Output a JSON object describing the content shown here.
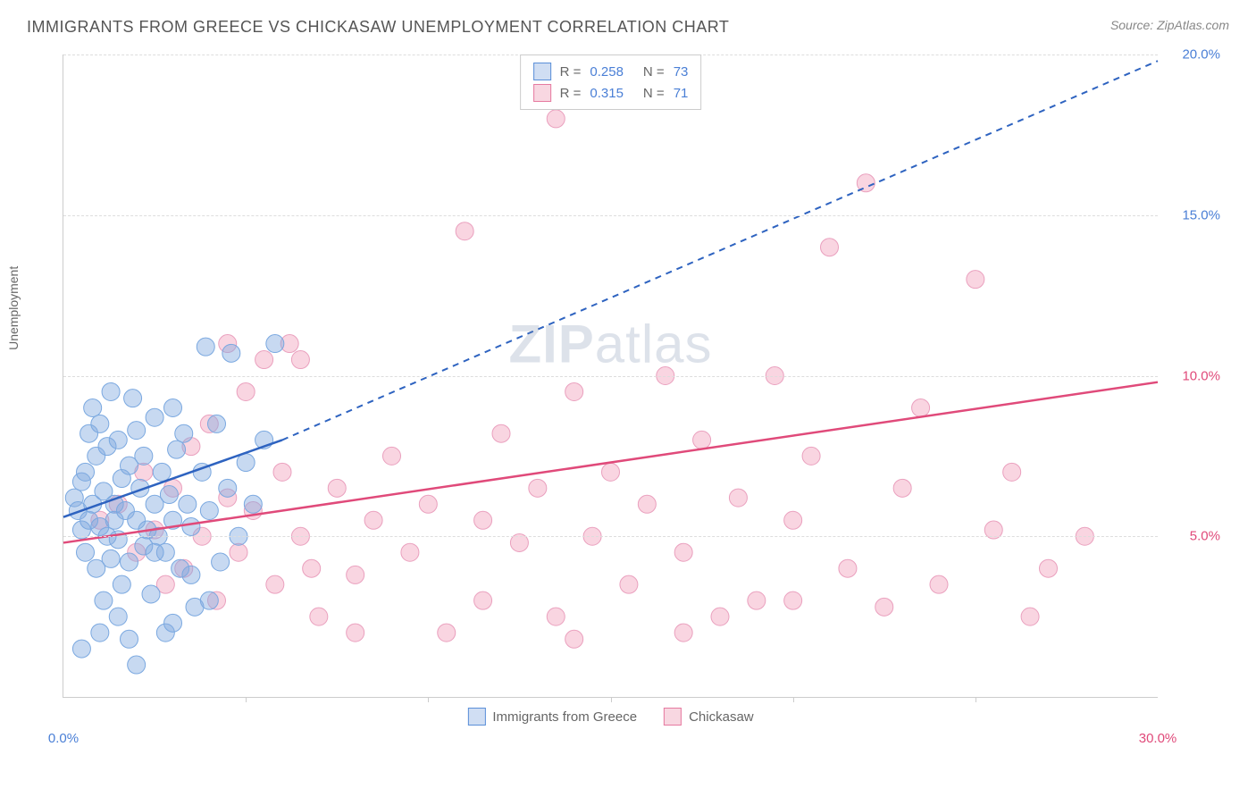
{
  "header": {
    "title": "IMMIGRANTS FROM GREECE VS CHICKASAW UNEMPLOYMENT CORRELATION CHART",
    "source": "Source: ZipAtlas.com"
  },
  "chart": {
    "type": "scatter",
    "ylabel": "Unemployment",
    "xlim": [
      0,
      30
    ],
    "ylim": [
      0,
      20
    ],
    "background_color": "#ffffff",
    "grid_color": "#dddddd",
    "axis_color": "#cccccc",
    "yticks": [
      {
        "value": 5,
        "label": "5.0%",
        "color": "#e04a7a"
      },
      {
        "value": 10,
        "label": "10.0%",
        "color": "#e04a7a"
      },
      {
        "value": 15,
        "label": "15.0%",
        "color": "#4a7fd6"
      },
      {
        "value": 20,
        "label": "20.0%",
        "color": "#4a7fd6"
      }
    ],
    "xticks": [
      {
        "value": 0,
        "label": "0.0%",
        "color": "#4a7fd6"
      },
      {
        "value": 30,
        "label": "30.0%",
        "color": "#e04a7a"
      }
    ],
    "xtick_marks": [
      5,
      10,
      15,
      20,
      25
    ],
    "legend_top": [
      {
        "swatch_fill": "rgba(120,160,220,0.35)",
        "swatch_border": "#5a8fd8",
        "r_label": "R =",
        "r_value": "0.258",
        "n_label": "N =",
        "n_value": "73",
        "value_color": "#4a7fd6",
        "label_color": "#666666"
      },
      {
        "swatch_fill": "rgba(235,140,170,0.35)",
        "swatch_border": "#e67aa0",
        "r_label": "R =",
        "r_value": "0.315",
        "n_label": "N =",
        "n_value": "71",
        "value_color": "#4a7fd6",
        "label_color": "#666666"
      }
    ],
    "legend_bottom": [
      {
        "swatch_fill": "rgba(120,160,220,0.35)",
        "swatch_border": "#5a8fd8",
        "label": "Immigrants from Greece"
      },
      {
        "swatch_fill": "rgba(235,140,170,0.35)",
        "swatch_border": "#e67aa0",
        "label": "Chickasaw"
      }
    ],
    "watermark": {
      "part1": "ZIP",
      "part2": "atlas"
    },
    "series": [
      {
        "name": "Immigrants from Greece",
        "color_fill": "rgba(130,170,225,0.45)",
        "color_stroke": "#7aa8e0",
        "marker_radius": 10,
        "trend": {
          "solid_from": [
            0,
            5.6
          ],
          "solid_to": [
            6,
            8.0
          ],
          "dashed_to": [
            30,
            19.8
          ],
          "color": "#2e63c0",
          "width": 2.5
        },
        "points": [
          [
            0.3,
            6.2
          ],
          [
            0.4,
            5.8
          ],
          [
            0.5,
            5.2
          ],
          [
            0.5,
            6.7
          ],
          [
            0.6,
            4.5
          ],
          [
            0.6,
            7.0
          ],
          [
            0.7,
            8.2
          ],
          [
            0.7,
            5.5
          ],
          [
            0.8,
            6.0
          ],
          [
            0.8,
            9.0
          ],
          [
            0.9,
            4.0
          ],
          [
            0.9,
            7.5
          ],
          [
            1.0,
            5.3
          ],
          [
            1.0,
            8.5
          ],
          [
            1.1,
            6.4
          ],
          [
            1.1,
            3.0
          ],
          [
            1.2,
            5.0
          ],
          [
            1.2,
            7.8
          ],
          [
            1.3,
            9.5
          ],
          [
            1.3,
            4.3
          ],
          [
            1.4,
            6.0
          ],
          [
            1.4,
            5.5
          ],
          [
            1.5,
            8.0
          ],
          [
            1.5,
            4.9
          ],
          [
            1.6,
            6.8
          ],
          [
            1.6,
            3.5
          ],
          [
            1.7,
            5.8
          ],
          [
            1.8,
            7.2
          ],
          [
            1.8,
            4.2
          ],
          [
            1.9,
            9.3
          ],
          [
            2.0,
            5.5
          ],
          [
            2.0,
            8.3
          ],
          [
            2.1,
            6.5
          ],
          [
            2.2,
            4.7
          ],
          [
            2.2,
            7.5
          ],
          [
            2.3,
            5.2
          ],
          [
            2.4,
            3.2
          ],
          [
            2.5,
            6.0
          ],
          [
            2.5,
            8.7
          ],
          [
            2.6,
            5.0
          ],
          [
            2.7,
            7.0
          ],
          [
            2.8,
            4.5
          ],
          [
            2.9,
            6.3
          ],
          [
            3.0,
            9.0
          ],
          [
            3.0,
            5.5
          ],
          [
            3.1,
            7.7
          ],
          [
            3.2,
            4.0
          ],
          [
            3.3,
            8.2
          ],
          [
            3.4,
            6.0
          ],
          [
            3.5,
            5.3
          ],
          [
            3.6,
            2.8
          ],
          [
            3.8,
            7.0
          ],
          [
            3.9,
            10.9
          ],
          [
            4.0,
            5.8
          ],
          [
            4.2,
            8.5
          ],
          [
            4.3,
            4.2
          ],
          [
            4.5,
            6.5
          ],
          [
            4.6,
            10.7
          ],
          [
            4.8,
            5.0
          ],
          [
            5.0,
            7.3
          ],
          [
            5.2,
            6.0
          ],
          [
            5.5,
            8.0
          ],
          [
            5.8,
            11.0
          ],
          [
            2.0,
            1.0
          ],
          [
            1.5,
            2.5
          ],
          [
            2.8,
            2.0
          ],
          [
            3.5,
            3.8
          ],
          [
            4.0,
            3.0
          ],
          [
            1.0,
            2.0
          ],
          [
            0.5,
            1.5
          ],
          [
            1.8,
            1.8
          ],
          [
            2.5,
            4.5
          ],
          [
            3.0,
            2.3
          ]
        ]
      },
      {
        "name": "Chickasaw",
        "color_fill": "rgba(240,150,180,0.40)",
        "color_stroke": "#eaa0be",
        "marker_radius": 10,
        "trend": {
          "solid_from": [
            0,
            4.8
          ],
          "solid_to": [
            30,
            9.8
          ],
          "dashed_to": null,
          "color": "#e04a7a",
          "width": 2.5
        },
        "points": [
          [
            1.0,
            5.5
          ],
          [
            1.5,
            6.0
          ],
          [
            2.0,
            4.5
          ],
          [
            2.2,
            7.0
          ],
          [
            2.5,
            5.2
          ],
          [
            2.8,
            3.5
          ],
          [
            3.0,
            6.5
          ],
          [
            3.3,
            4.0
          ],
          [
            3.5,
            7.8
          ],
          [
            3.8,
            5.0
          ],
          [
            4.0,
            8.5
          ],
          [
            4.2,
            3.0
          ],
          [
            4.5,
            6.2
          ],
          [
            4.8,
            4.5
          ],
          [
            5.0,
            9.5
          ],
          [
            5.2,
            5.8
          ],
          [
            5.5,
            10.5
          ],
          [
            5.8,
            3.5
          ],
          [
            6.0,
            7.0
          ],
          [
            6.2,
            11.0
          ],
          [
            6.5,
            5.0
          ],
          [
            6.8,
            4.0
          ],
          [
            7.0,
            2.5
          ],
          [
            7.5,
            6.5
          ],
          [
            8.0,
            3.8
          ],
          [
            8.5,
            5.5
          ],
          [
            9.0,
            7.5
          ],
          [
            9.5,
            4.5
          ],
          [
            10.0,
            6.0
          ],
          [
            10.5,
            2.0
          ],
          [
            11.0,
            14.5
          ],
          [
            11.5,
            5.5
          ],
          [
            12.0,
            8.2
          ],
          [
            12.5,
            4.8
          ],
          [
            13.0,
            6.5
          ],
          [
            13.5,
            18.0
          ],
          [
            13.5,
            2.5
          ],
          [
            14.0,
            9.5
          ],
          [
            14.5,
            5.0
          ],
          [
            15.0,
            7.0
          ],
          [
            15.5,
            3.5
          ],
          [
            16.0,
            6.0
          ],
          [
            16.5,
            10.0
          ],
          [
            17.0,
            4.5
          ],
          [
            17.5,
            8.0
          ],
          [
            18.0,
            2.5
          ],
          [
            18.5,
            6.2
          ],
          [
            19.0,
            3.0
          ],
          [
            19.5,
            10.0
          ],
          [
            20.0,
            5.5
          ],
          [
            20.5,
            7.5
          ],
          [
            21.0,
            14.0
          ],
          [
            21.5,
            4.0
          ],
          [
            22.0,
            16.0
          ],
          [
            22.5,
            2.8
          ],
          [
            23.0,
            6.5
          ],
          [
            23.5,
            9.0
          ],
          [
            24.0,
            3.5
          ],
          [
            25.0,
            13.0
          ],
          [
            25.5,
            5.2
          ],
          [
            26.0,
            7.0
          ],
          [
            26.5,
            2.5
          ],
          [
            27.0,
            4.0
          ],
          [
            28.0,
            5.0
          ],
          [
            14.0,
            1.8
          ],
          [
            11.5,
            3.0
          ],
          [
            8.0,
            2.0
          ],
          [
            6.5,
            10.5
          ],
          [
            4.5,
            11.0
          ],
          [
            17.0,
            2.0
          ],
          [
            20.0,
            3.0
          ]
        ]
      }
    ]
  }
}
